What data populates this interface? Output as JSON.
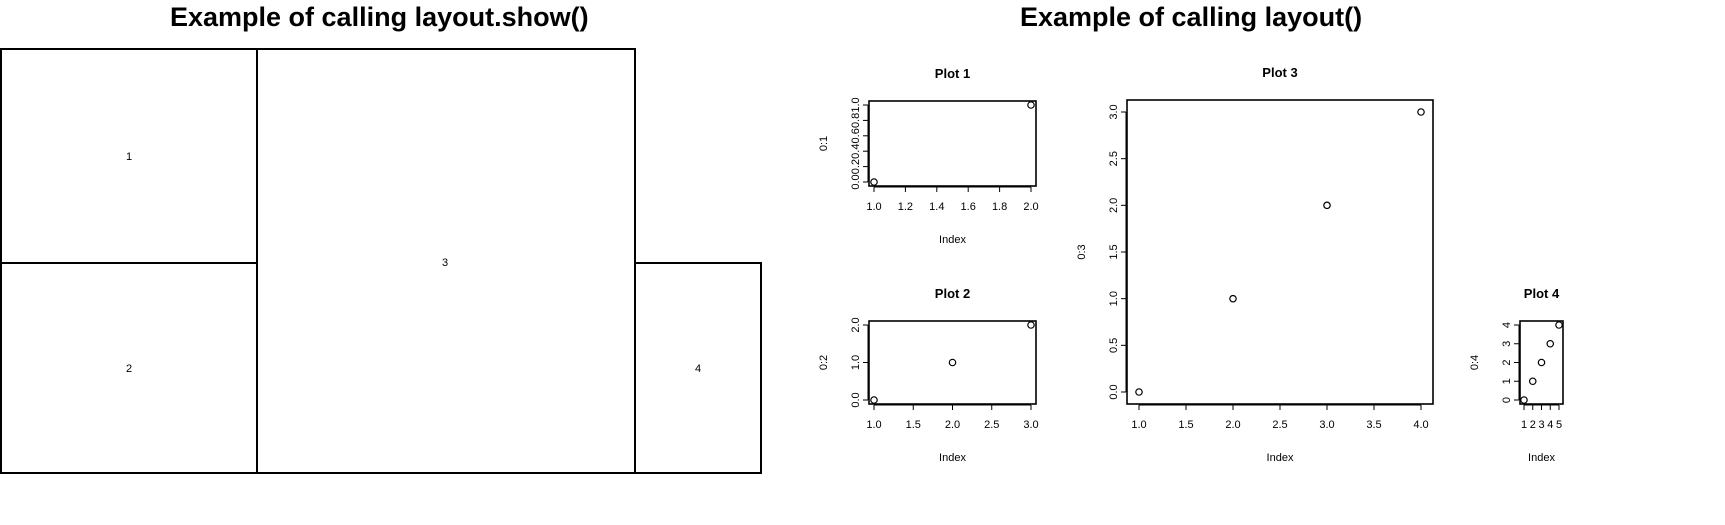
{
  "left_panel": {
    "title": "Example of calling layout.show()",
    "panels": [
      "1",
      "2",
      "3",
      "4"
    ]
  },
  "right_panel": {
    "title": "Example of calling layout()"
  },
  "chart_data": [
    {
      "type": "scatter",
      "title": "Plot 1",
      "xlabel": "Index",
      "ylabel": "0:1",
      "x": [
        1,
        2
      ],
      "y": [
        0,
        1
      ],
      "xlim": [
        1,
        2
      ],
      "ylim": [
        0,
        1
      ],
      "xticks": [
        "1.0",
        "1.2",
        "1.4",
        "1.6",
        "1.8",
        "2.0"
      ],
      "yticks": [
        "0.0",
        "0.2",
        "0.4",
        "0.6",
        "0.8",
        "1.0"
      ]
    },
    {
      "type": "scatter",
      "title": "Plot 2",
      "xlabel": "Index",
      "ylabel": "0:2",
      "x": [
        1,
        2,
        3
      ],
      "y": [
        0,
        1,
        2
      ],
      "xlim": [
        1,
        3
      ],
      "ylim": [
        0,
        2
      ],
      "xticks": [
        "1.0",
        "1.5",
        "2.0",
        "2.5",
        "3.0"
      ],
      "yticks": [
        "0.0",
        "1.0",
        "2.0"
      ]
    },
    {
      "type": "scatter",
      "title": "Plot 3",
      "xlabel": "Index",
      "ylabel": "0:3",
      "x": [
        1,
        2,
        3,
        4
      ],
      "y": [
        0,
        1,
        2,
        3
      ],
      "xlim": [
        1,
        4
      ],
      "ylim": [
        0,
        3
      ],
      "xticks": [
        "1.0",
        "1.5",
        "2.0",
        "2.5",
        "3.0",
        "3.5",
        "4.0"
      ],
      "yticks": [
        "0.0",
        "0.5",
        "1.0",
        "1.5",
        "2.0",
        "2.5",
        "3.0"
      ]
    },
    {
      "type": "scatter",
      "title": "Plot 4",
      "xlabel": "Index",
      "ylabel": "0:4",
      "x": [
        1,
        2,
        3,
        4,
        5
      ],
      "y": [
        0,
        1,
        2,
        3,
        4
      ],
      "xlim": [
        1,
        5
      ],
      "ylim": [
        0,
        4
      ],
      "xticks": [
        "1",
        "2",
        "3",
        "4",
        "5"
      ],
      "yticks": [
        "0",
        "1",
        "2",
        "3",
        "4"
      ]
    }
  ]
}
